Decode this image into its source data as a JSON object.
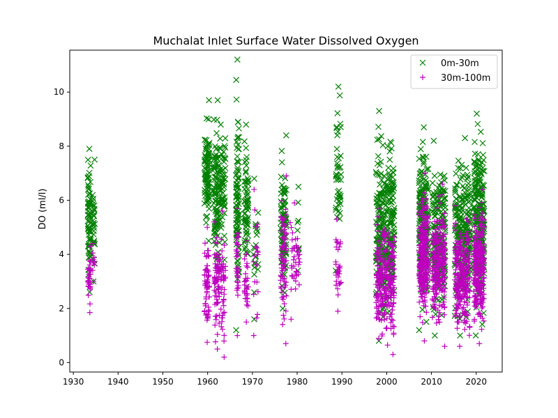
{
  "chart_data": {
    "type": "scatter",
    "title": "Muchalat Inlet Surface Water Dissolved Oxygen",
    "xlabel": "",
    "ylabel": "DO (ml/l)",
    "xlim": [
      1929.2,
      2025.8
    ],
    "ylim": [
      -0.35,
      11.55
    ],
    "xticks": [
      1930,
      1940,
      1950,
      1960,
      1970,
      1980,
      1990,
      2000,
      2010,
      2020
    ],
    "xtick_labels": [
      "1930",
      "1940",
      "1950",
      "1960",
      "1970",
      "1980",
      "1990",
      "2000",
      "2010",
      "2020"
    ],
    "yticks": [
      0,
      2,
      4,
      6,
      8,
      10
    ],
    "ytick_labels": [
      "0",
      "2",
      "4",
      "6",
      "8",
      "10"
    ],
    "grid": false,
    "legend_position": "top-right",
    "series": [
      {
        "name": "0m-30m",
        "marker": "x",
        "color": "#008000",
        "clusters": [
          {
            "x": [
              1933.2,
              1933.9
            ],
            "y_range": [
              2.6,
              7.9
            ],
            "n": 70
          },
          {
            "x": [
              1934.3,
              1934.8
            ],
            "y_range": [
              3.0,
              7.5
            ],
            "n": 30
          },
          {
            "x": [
              1959.3,
              1960.4
            ],
            "y_range": [
              4.5,
              9.7
            ],
            "n": 95
          },
          {
            "x": [
              1961.4,
              1962.5
            ],
            "y_range": [
              2.7,
              9.7
            ],
            "n": 95
          },
          {
            "x": [
              1962.5,
              1964.0
            ],
            "y_range": [
              3.8,
              8.8
            ],
            "n": 70
          },
          {
            "x": [
              1966.3,
              1967.0
            ],
            "y_range": [
              1.2,
              11.2
            ],
            "n": 90
          },
          {
            "x": [
              1968.2,
              1969.1
            ],
            "y_range": [
              2.8,
              8.8
            ],
            "n": 70
          },
          {
            "x": [
              1970.2,
              1971.3
            ],
            "y_range": [
              1.6,
              6.8
            ],
            "n": 22
          },
          {
            "x": [
              1976.3,
              1977.6
            ],
            "y_range": [
              2.0,
              8.4
            ],
            "n": 90
          },
          {
            "x": [
              1980.0,
              1980.4
            ],
            "y_range": [
              3.4,
              6.5
            ],
            "n": 8
          },
          {
            "x": [
              1988.6,
              1989.8
            ],
            "y_range": [
              3.4,
              10.2
            ],
            "n": 45
          },
          {
            "x": [
              1997.6,
              2001.7
            ],
            "y_range": [
              0.8,
              9.3
            ],
            "n": 300
          },
          {
            "x": [
              2007.2,
              2009.3
            ],
            "y_range": [
              1.2,
              8.7
            ],
            "n": 220
          },
          {
            "x": [
              2010.2,
              2013.1
            ],
            "y_range": [
              1.0,
              8.2
            ],
            "n": 210
          },
          {
            "x": [
              2015.2,
              2018.6
            ],
            "y_range": [
              1.0,
              8.3
            ],
            "n": 240
          },
          {
            "x": [
              2019.4,
              2021.8
            ],
            "y_range": [
              1.0,
              9.2
            ],
            "n": 240
          }
        ]
      },
      {
        "name": "30m-100m",
        "marker": "+",
        "color": "#bf00bf",
        "clusters": [
          {
            "x": [
              1933.2,
              1933.9
            ],
            "y_range": [
              1.85,
              4.3
            ],
            "n": 30
          },
          {
            "x": [
              1934.3,
              1934.8
            ],
            "y_range": [
              3.0,
              4.4
            ],
            "n": 12
          },
          {
            "x": [
              1959.3,
              1960.4
            ],
            "y_range": [
              0.75,
              5.0
            ],
            "n": 60
          },
          {
            "x": [
              1961.4,
              1962.5
            ],
            "y_range": [
              0.5,
              5.2
            ],
            "n": 60
          },
          {
            "x": [
              1962.5,
              1964.0
            ],
            "y_range": [
              0.2,
              5.6
            ],
            "n": 55
          },
          {
            "x": [
              1966.3,
              1967.0
            ],
            "y_range": [
              1.0,
              5.7
            ],
            "n": 30
          },
          {
            "x": [
              1968.2,
              1969.1
            ],
            "y_range": [
              1.5,
              4.5
            ],
            "n": 30
          },
          {
            "x": [
              1970.2,
              1971.3
            ],
            "y_range": [
              1.0,
              6.4
            ],
            "n": 20
          },
          {
            "x": [
              1976.3,
              1977.6
            ],
            "y_range": [
              0.7,
              6.9
            ],
            "n": 70
          },
          {
            "x": [
              1978.3,
              1980.6
            ],
            "y_range": [
              1.6,
              5.9
            ],
            "n": 40
          },
          {
            "x": [
              1988.6,
              1989.8
            ],
            "y_range": [
              1.9,
              5.3
            ],
            "n": 30
          },
          {
            "x": [
              1997.6,
              2001.7
            ],
            "y_range": [
              0.3,
              5.7
            ],
            "n": 250
          },
          {
            "x": [
              2007.2,
              2009.3
            ],
            "y_range": [
              0.8,
              7.0
            ],
            "n": 240
          },
          {
            "x": [
              2010.2,
              2013.1
            ],
            "y_range": [
              0.6,
              6.6
            ],
            "n": 220
          },
          {
            "x": [
              2015.2,
              2018.6
            ],
            "y_range": [
              0.6,
              5.8
            ],
            "n": 230
          },
          {
            "x": [
              2019.4,
              2021.8
            ],
            "y_range": [
              0.7,
              6.4
            ],
            "n": 230
          }
        ]
      }
    ]
  }
}
